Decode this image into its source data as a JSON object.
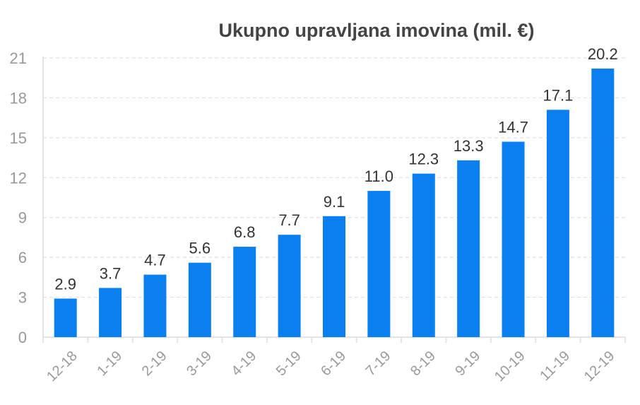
{
  "chart_data": {
    "type": "bar",
    "title": "Ukupno upravljana imovina (mil. €)",
    "xlabel": "",
    "ylabel": "",
    "categories": [
      "12-18",
      "1-19",
      "2-19",
      "3-19",
      "4-19",
      "5-19",
      "6-19",
      "7-19",
      "8-19",
      "9-19",
      "10-19",
      "11-19",
      "12-19"
    ],
    "values": [
      2.9,
      3.7,
      4.7,
      5.6,
      6.8,
      7.7,
      9.1,
      11.0,
      12.3,
      13.3,
      14.7,
      17.1,
      20.2
    ],
    "value_labels": [
      "2.9",
      "3.7",
      "4.7",
      "5.6",
      "6.8",
      "7.7",
      "9.1",
      "11.0",
      "12.3",
      "13.3",
      "14.7",
      "17.1",
      "20.2"
    ],
    "ylim": [
      0,
      21
    ],
    "yticks": [
      0,
      3,
      6,
      9,
      12,
      15,
      18,
      21
    ],
    "grid": true,
    "legend": "none",
    "colors": {
      "bar": "#0a7ff0",
      "grid": "#dfe1ea",
      "axis": "#e2e4ec",
      "tick_label": "#999999",
      "value_label": "#333333",
      "title": "#444444"
    }
  }
}
